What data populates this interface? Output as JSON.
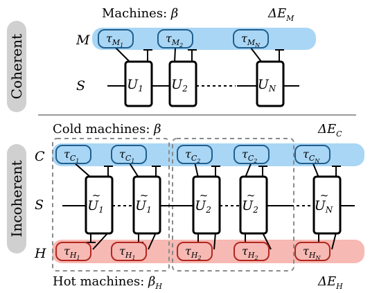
{
  "top": {
    "side_label": "Coherent",
    "header_text": "Machines: ",
    "header_symbol": "β",
    "energy_main": "ΔE",
    "energy_sub": "M",
    "row_machine": "M",
    "row_system": "S",
    "taus": [
      {
        "sym": "τ",
        "sub": "M",
        "idx": "1"
      },
      {
        "sym": "τ",
        "sub": "M",
        "idx": "2"
      },
      {
        "sym": "τ",
        "sub": "M",
        "idx": "N"
      }
    ],
    "unitaries": [
      {
        "sym": "U",
        "idx": "1"
      },
      {
        "sym": "U",
        "idx": "2"
      },
      {
        "sym": "U",
        "idx": "N"
      }
    ]
  },
  "bottom": {
    "side_label": "Incoherent",
    "cold_header_text": "Cold machines: ",
    "cold_header_symbol": "β",
    "cold_energy_main": "ΔE",
    "cold_energy_sub": "C",
    "hot_header_text": "Hot machines: ",
    "hot_header_symbol": "β",
    "hot_header_sub": "H",
    "hot_energy_main": "ΔE",
    "hot_energy_sub": "H",
    "row_cold": "C",
    "row_system": "S",
    "row_hot": "H",
    "cold_taus": [
      {
        "sym": "τ",
        "sub": "C",
        "idx": "1"
      },
      {
        "sym": "τ",
        "sub": "C",
        "idx": "1"
      },
      {
        "sym": "τ",
        "sub": "C",
        "idx": "2"
      },
      {
        "sym": "τ",
        "sub": "C",
        "idx": "2"
      },
      {
        "sym": "τ",
        "sub": "C",
        "idx": "N"
      }
    ],
    "hot_taus": [
      {
        "sym": "τ",
        "sub": "H",
        "idx": "1"
      },
      {
        "sym": "τ",
        "sub": "H",
        "idx": "1"
      },
      {
        "sym": "τ",
        "sub": "H",
        "idx": "2"
      },
      {
        "sym": "τ",
        "sub": "H",
        "idx": "2"
      },
      {
        "sym": "τ",
        "sub": "H",
        "idx": "N"
      }
    ],
    "unitaries": [
      {
        "sym": "U",
        "tilde": "~",
        "idx": "1"
      },
      {
        "sym": "U",
        "tilde": "~",
        "idx": "1"
      },
      {
        "sym": "U",
        "tilde": "~",
        "idx": "2"
      },
      {
        "sym": "U",
        "tilde": "~",
        "idx": "2"
      },
      {
        "sym": "U",
        "tilde": "~",
        "idx": "N"
      }
    ]
  },
  "colors": {
    "cold_band": "#a9d6f5",
    "cold_stroke": "#1f5f8e",
    "hot_band": "#f6b9b4",
    "hot_stroke": "#b3261e",
    "side_pill": "#d0d0d0",
    "divider": "#9a9a9a",
    "dashed_group": "#8a8a8a"
  }
}
